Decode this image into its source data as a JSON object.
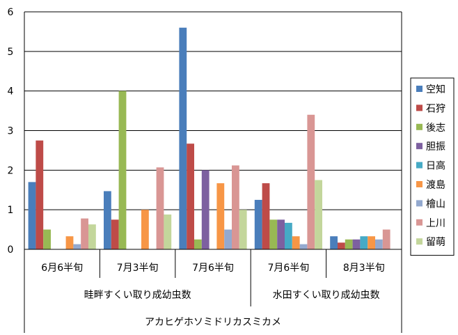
{
  "chart_data": {
    "type": "bar",
    "title": "",
    "xlabel": "",
    "ylabel": "",
    "ylim": [
      0,
      6
    ],
    "yticks": [
      0,
      1,
      2,
      3,
      4,
      5,
      6
    ],
    "grid": true,
    "legend_position": "right",
    "categories": [
      "6月6半旬",
      "7月3半旬",
      "7月6半旬",
      "7月6半旬",
      "8月3半旬"
    ],
    "groups": [
      {
        "label": "畦畔すくい取り成幼虫数",
        "categories": 3
      },
      {
        "label": "水田すくい取り成幼虫数",
        "categories": 2
      }
    ],
    "supergroup": "アカヒゲホソミドリカスミカメ",
    "series": [
      {
        "name": "空知",
        "color": "#4a7ebb",
        "values": [
          1.7,
          1.47,
          5.6,
          1.25,
          0.33
        ]
      },
      {
        "name": "石狩",
        "color": "#be4b48",
        "values": [
          2.75,
          0.75,
          2.67,
          1.67,
          0.17
        ]
      },
      {
        "name": "後志",
        "color": "#98b954",
        "values": [
          0.5,
          4.0,
          0.25,
          0.75,
          0.25
        ]
      },
      {
        "name": "胆振",
        "color": "#7d60a0",
        "values": [
          0,
          0,
          2.0,
          0.75,
          0.25
        ]
      },
      {
        "name": "日高",
        "color": "#46aac5",
        "values": [
          0,
          0,
          0,
          0.67,
          0.33
        ]
      },
      {
        "name": "渡島",
        "color": "#f79646",
        "values": [
          0.33,
          1.0,
          1.67,
          0.33,
          0.33
        ]
      },
      {
        "name": "檜山",
        "color": "#93a9cf",
        "values": [
          0.13,
          0,
          0.5,
          0.13,
          0.25
        ]
      },
      {
        "name": "上川",
        "color": "#d99694",
        "values": [
          0.78,
          2.07,
          2.12,
          3.4,
          0.5
        ]
      },
      {
        "name": "留萌",
        "color": "#c3d69b",
        "values": [
          0.63,
          0.88,
          1.0,
          1.75,
          0
        ]
      }
    ]
  }
}
